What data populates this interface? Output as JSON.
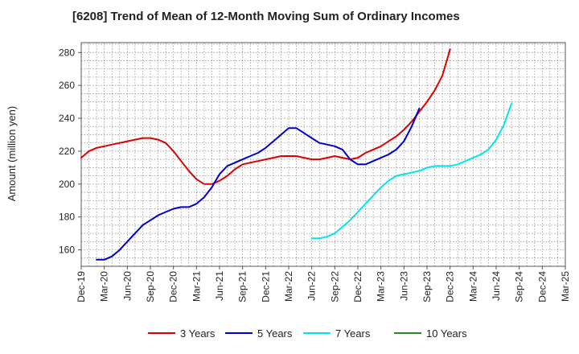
{
  "chart_data": {
    "type": "line",
    "title": "[6208]  Trend of Mean of 12-Month Moving Sum of Ordinary Incomes",
    "xlabel": "",
    "ylabel": "Amount (million yen)",
    "ylim": [
      150,
      286
    ],
    "yticks": [
      160,
      180,
      200,
      220,
      240,
      260,
      280
    ],
    "x_tick_labels": [
      "Dec-19",
      "Mar-20",
      "Jun-20",
      "Sep-20",
      "Dec-20",
      "Mar-21",
      "Jun-21",
      "Sep-21",
      "Dec-21",
      "Mar-22",
      "Jun-22",
      "Sep-22",
      "Dec-22",
      "Mar-23",
      "Jun-23",
      "Sep-23",
      "Dec-23",
      "Mar-24",
      "Jun-24",
      "Sep-24",
      "Dec-24",
      "Mar-25"
    ],
    "grid": true,
    "legend_position": "bottom",
    "series": [
      {
        "name": "3 Years",
        "color": "#dd0000",
        "start_index": 0,
        "values": [
          216,
          220,
          222,
          223,
          224,
          225,
          226,
          227,
          228,
          228,
          227,
          225,
          220,
          214,
          208,
          203,
          200,
          200,
          202,
          205,
          209,
          212,
          213,
          214,
          215,
          216,
          217,
          217,
          217,
          216,
          215,
          215,
          216,
          217,
          216,
          215,
          216,
          219,
          221,
          223,
          226,
          229,
          233,
          238,
          244,
          250,
          257,
          266,
          282
        ]
      },
      {
        "name": "5 Years",
        "color": "#0000cc",
        "start_index": 2,
        "values": [
          154,
          154,
          156,
          160,
          165,
          170,
          175,
          178,
          181,
          183,
          185,
          186,
          186,
          188,
          192,
          198,
          206,
          211,
          213,
          215,
          217,
          219,
          222,
          226,
          230,
          234,
          234,
          231,
          228,
          225,
          224,
          223,
          221,
          215,
          212,
          212,
          214,
          216,
          218,
          221,
          226,
          235,
          246
        ]
      },
      {
        "name": "7 Years",
        "color": "#00e5ee",
        "start_index": 30,
        "values": [
          167,
          167,
          168,
          170,
          174,
          178,
          183,
          188,
          193,
          198,
          202,
          205,
          206,
          207,
          208,
          210,
          211,
          211,
          211,
          212,
          214,
          216,
          218,
          221,
          227,
          236,
          249
        ]
      },
      {
        "name": "10 Years",
        "color": "#228b22",
        "start_index": 0,
        "values": []
      }
    ]
  }
}
